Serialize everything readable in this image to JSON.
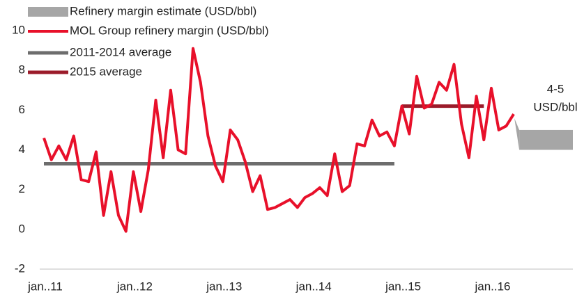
{
  "chart_data": {
    "type": "line",
    "categories": [
      "jan..11",
      null,
      null,
      null,
      null,
      null,
      null,
      null,
      null,
      null,
      null,
      null,
      "jan..12",
      null,
      null,
      null,
      null,
      null,
      null,
      null,
      null,
      null,
      null,
      null,
      "jan..13",
      null,
      null,
      null,
      null,
      null,
      null,
      null,
      null,
      null,
      null,
      null,
      "jan..14",
      null,
      null,
      null,
      null,
      null,
      null,
      null,
      null,
      null,
      null,
      null,
      "jan..15",
      null,
      null,
      null,
      null,
      null,
      null,
      null,
      null,
      null,
      null,
      null,
      "jan..16",
      null,
      null,
      null
    ],
    "ylim": [
      -2,
      10
    ],
    "yticks": [
      -2,
      0,
      2,
      4,
      6,
      8,
      10
    ],
    "estimate": {
      "name": "Refinery margin estimate (USD/bbl)",
      "low": 4,
      "high": 5,
      "color": "#a6a6a6"
    },
    "annotation": [
      "4-5",
      "USD/bbl"
    ],
    "series": [
      {
        "name": "MOL Group refinery margin (USD/bbl)",
        "color": "#e8102a",
        "width": 4,
        "values": [
          4.6,
          3.5,
          4.2,
          3.5,
          4.7,
          2.5,
          2.4,
          3.9,
          0.7,
          2.9,
          0.7,
          -0.1,
          2.9,
          0.9,
          3.0,
          6.5,
          3.6,
          7.0,
          4.0,
          3.8,
          9.1,
          7.4,
          4.7,
          3.2,
          2.4,
          5.0,
          4.5,
          3.4,
          1.9,
          2.7,
          1.0,
          1.1,
          1.3,
          1.5,
          1.1,
          1.6,
          1.8,
          2.1,
          1.7,
          3.8,
          1.9,
          2.2,
          4.3,
          4.2,
          5.5,
          4.7,
          4.9,
          4.2,
          6.2,
          4.8,
          7.7,
          6.1,
          6.3,
          7.4,
          7.0,
          8.3,
          5.3,
          3.6,
          6.7,
          4.5,
          7.1,
          5.0,
          5.2,
          5.8
        ]
      },
      {
        "name": "2011-2014 average",
        "color": "#6d6d6d",
        "width": 5,
        "values": [
          3.3,
          3.3,
          3.3,
          3.3,
          3.3,
          3.3,
          3.3,
          3.3,
          3.3,
          3.3,
          3.3,
          3.3,
          3.3,
          3.3,
          3.3,
          3.3,
          3.3,
          3.3,
          3.3,
          3.3,
          3.3,
          3.3,
          3.3,
          3.3,
          3.3,
          3.3,
          3.3,
          3.3,
          3.3,
          3.3,
          3.3,
          3.3,
          3.3,
          3.3,
          3.3,
          3.3,
          3.3,
          3.3,
          3.3,
          3.3,
          3.3,
          3.3,
          3.3,
          3.3,
          3.3,
          3.3,
          3.3,
          3.3,
          null,
          null,
          null,
          null,
          null,
          null,
          null,
          null,
          null,
          null,
          null,
          null,
          null,
          null,
          null,
          null
        ]
      },
      {
        "name": "2015 average",
        "color": "#9b1b2a",
        "width": 5,
        "values": [
          null,
          null,
          null,
          null,
          null,
          null,
          null,
          null,
          null,
          null,
          null,
          null,
          null,
          null,
          null,
          null,
          null,
          null,
          null,
          null,
          null,
          null,
          null,
          null,
          null,
          null,
          null,
          null,
          null,
          null,
          null,
          null,
          null,
          null,
          null,
          null,
          null,
          null,
          null,
          null,
          null,
          null,
          null,
          null,
          null,
          null,
          null,
          null,
          6.2,
          6.2,
          6.2,
          6.2,
          6.2,
          6.2,
          6.2,
          6.2,
          6.2,
          6.2,
          6.2,
          6.2,
          null,
          null,
          null,
          null
        ]
      }
    ]
  }
}
